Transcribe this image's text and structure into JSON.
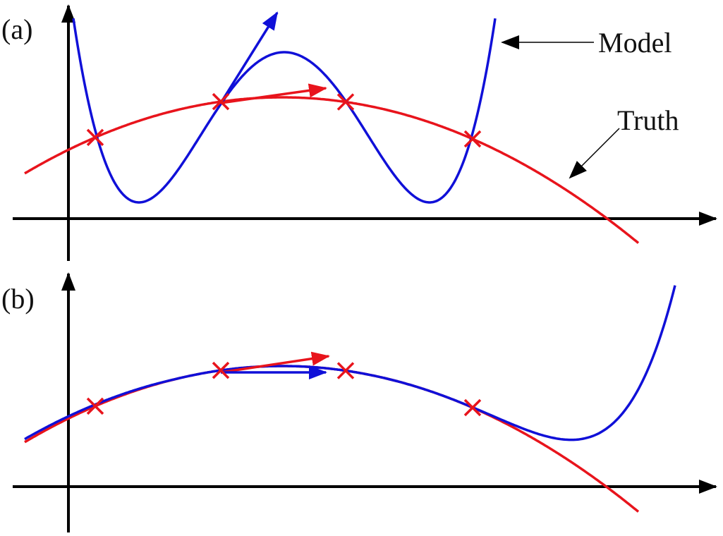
{
  "panels": [
    {
      "label": "(a)"
    },
    {
      "label": "(b)"
    }
  ],
  "annotations": {
    "model": "Model",
    "truth": "Truth"
  }
}
